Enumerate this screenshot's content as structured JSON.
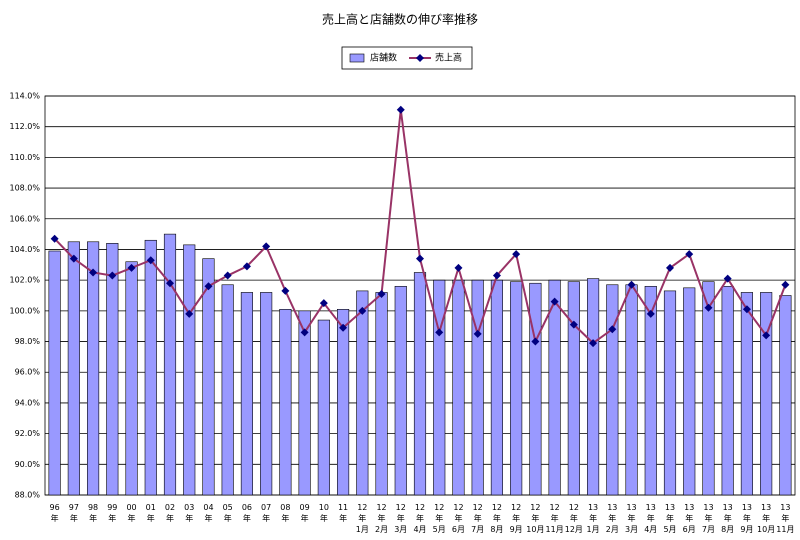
{
  "chart_data": {
    "type": "bar",
    "title": "売上高と店舗数の伸び率推移",
    "categories": [
      "96年",
      "97年",
      "98年",
      "99年",
      "00年",
      "01年",
      "02年",
      "03年",
      "04年",
      "05年",
      "06年",
      "07年",
      "08年",
      "09年",
      "10年",
      "11年",
      "12年1月",
      "12年2月",
      "12年3月",
      "12年4月",
      "12年5月",
      "12年6月",
      "12年7月",
      "12年8月",
      "12年9月",
      "12年10月",
      "12年11月",
      "12年12月",
      "13年1月",
      "13年2月",
      "13年3月",
      "13年4月",
      "13年5月",
      "13年6月",
      "13年7月",
      "13年8月",
      "13年9月",
      "13年10月",
      "13年11月"
    ],
    "series": [
      {
        "name": "店舗数",
        "type": "bar",
        "color": "#9999ff",
        "values": [
          103.9,
          104.5,
          104.5,
          104.4,
          103.2,
          104.6,
          105.0,
          104.3,
          103.4,
          101.7,
          101.2,
          101.2,
          100.1,
          100.0,
          99.4,
          100.1,
          101.3,
          101.2,
          101.6,
          102.5,
          102.0,
          102.0,
          102.0,
          102.0,
          101.9,
          101.8,
          102.0,
          101.9,
          102.1,
          101.7,
          101.7,
          101.6,
          101.3,
          101.5,
          101.9,
          101.6,
          101.2,
          101.2,
          101.0
        ]
      },
      {
        "name": "売上高",
        "type": "line",
        "color": "#993366",
        "marker_color": "#000080",
        "values": [
          104.7,
          103.4,
          102.5,
          102.3,
          102.8,
          103.3,
          101.8,
          99.8,
          101.6,
          102.3,
          102.9,
          104.2,
          101.3,
          98.6,
          100.5,
          98.9,
          100.0,
          101.1,
          113.1,
          103.4,
          98.6,
          102.8,
          98.5,
          102.3,
          103.7,
          98.0,
          100.6,
          99.1,
          97.9,
          98.8,
          101.7,
          99.8,
          102.8,
          103.7,
          100.2,
          102.1,
          100.1,
          98.4,
          101.7
        ]
      }
    ],
    "ylim": [
      88,
      114
    ],
    "yticks": [
      {
        "value": 88,
        "label": "88.0%"
      },
      {
        "value": 90,
        "label": "90.0%"
      },
      {
        "value": 92,
        "label": "92.0%"
      },
      {
        "value": 94,
        "label": "94.0%"
      },
      {
        "value": 96,
        "label": "96.0%"
      },
      {
        "value": 98,
        "label": "98.0%"
      },
      {
        "value": 100,
        "label": "100.0%"
      },
      {
        "value": 102,
        "label": "102.0%"
      },
      {
        "value": 104,
        "label": "104.0%"
      },
      {
        "value": 106,
        "label": "106.0%"
      },
      {
        "value": 108,
        "label": "108.0%"
      },
      {
        "value": 110,
        "label": "110.0%"
      },
      {
        "value": 112,
        "label": "112.0%"
      },
      {
        "value": 114,
        "label": "114.0%"
      }
    ],
    "grid": true
  }
}
